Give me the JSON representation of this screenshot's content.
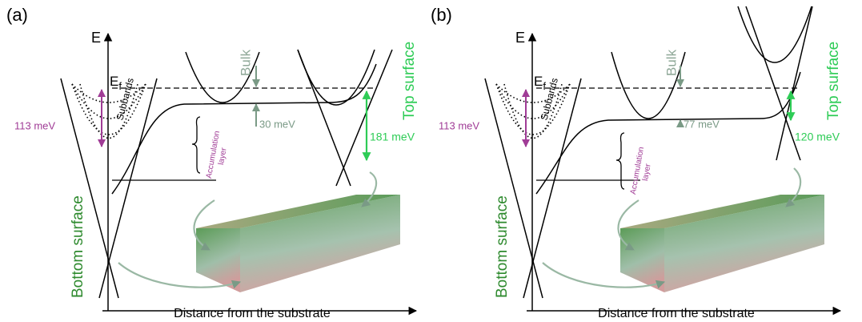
{
  "panels": [
    {
      "label": "(a)",
      "energy_axis": "E",
      "fermi_level": {
        "symbol": "E",
        "subscript": "f"
      },
      "bulk": "Bulk",
      "top_surface": "Top surface",
      "bottom_surface": "Bottom surface",
      "subbands": "Subbands",
      "bottom_gap": "113 meV",
      "bulk_offset": "30 meV",
      "top_gap": "181 meV",
      "accumulation": [
        "Accumulation",
        "layer"
      ],
      "x_axis": "Distance from the substrate"
    },
    {
      "label": "(b)",
      "energy_axis": "E",
      "fermi_level": {
        "symbol": "E",
        "subscript": "f"
      },
      "bulk": "Bulk",
      "top_surface": "Top surface",
      "bottom_surface": "Bottom surface",
      "subbands": "Subbands",
      "bottom_gap": "113 meV",
      "bulk_offset": "77 meV",
      "top_gap": "120 meV",
      "accumulation": [
        "Accumulation",
        "layer"
      ],
      "x_axis": "Distance from the substrate"
    }
  ]
}
